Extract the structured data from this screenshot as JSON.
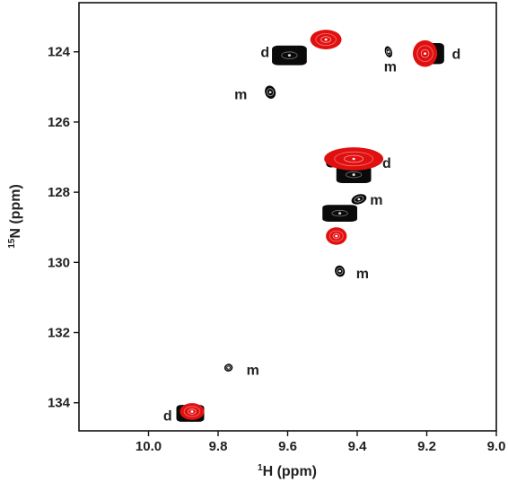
{
  "chart_data": {
    "type": "scatter",
    "title": "",
    "xlabel": {
      "sup": "1",
      "main": "H (ppm)"
    },
    "ylabel": {
      "sup": "15",
      "main": "N (ppm)"
    },
    "xlim": [
      10.2,
      9.0
    ],
    "ylim": [
      122.6,
      134.8
    ],
    "x_reversed": true,
    "y_reversed": true,
    "grid": false,
    "x_ticks": [
      "10.0",
      "9.8",
      "9.6",
      "9.4",
      "9.2",
      "9.0"
    ],
    "x_tick_values": [
      10.0,
      9.8,
      9.6,
      9.4,
      9.2,
      9.0
    ],
    "y_ticks": [
      "124",
      "126",
      "128",
      "130",
      "132",
      "134"
    ],
    "y_tick_values": [
      124,
      126,
      128,
      130,
      132,
      134
    ],
    "colors": {
      "black_spectrum": "#0a0a0a",
      "red_spectrum": "#e01010",
      "contour_light": "#9a9a9a"
    },
    "series": [
      {
        "color": "#0a0a0a",
        "points": [
          {
            "h": 9.595,
            "n": 124.1,
            "rx": 0.05,
            "ry": 0.28,
            "kind": "d"
          },
          {
            "h": 9.19,
            "n": 124.05,
            "rx": 0.04,
            "ry": 0.3,
            "kind": "d"
          },
          {
            "h": 9.41,
            "n": 127.5,
            "rx": 0.05,
            "ry": 0.24,
            "kind": "d"
          },
          {
            "h": 9.45,
            "n": 128.6,
            "rx": 0.05,
            "ry": 0.24,
            "kind": "d"
          },
          {
            "h": 9.88,
            "n": 134.3,
            "rx": 0.04,
            "ry": 0.24,
            "kind": "d"
          },
          {
            "h": 9.65,
            "n": 125.15,
            "rx": 0.035,
            "ry": 0.15,
            "kind": "m"
          },
          {
            "h": 9.31,
            "n": 124.0,
            "rx": 0.03,
            "ry": 0.1,
            "kind": "m"
          },
          {
            "h": 9.395,
            "n": 128.2,
            "rx": 0.025,
            "ry": 0.22,
            "kind": "m"
          },
          {
            "h": 9.45,
            "n": 130.25,
            "rx": 0.03,
            "ry": 0.14,
            "kind": "m"
          },
          {
            "h": 9.77,
            "n": 133.0,
            "rx": 0.02,
            "ry": 0.12,
            "kind": "m"
          },
          {
            "h": 9.47,
            "n": 127.15,
            "rx": 0.025,
            "ry": 0.2,
            "kind": "m"
          }
        ]
      },
      {
        "color": "#e01010",
        "points": [
          {
            "h": 9.49,
            "n": 123.65,
            "rx": 0.045,
            "ry": 0.28
          },
          {
            "h": 9.205,
            "n": 124.05,
            "rx": 0.035,
            "ry": 0.38
          },
          {
            "h": 9.41,
            "n": 127.05,
            "rx": 0.085,
            "ry": 0.33
          },
          {
            "h": 9.46,
            "n": 129.25,
            "rx": 0.03,
            "ry": 0.25
          },
          {
            "h": 9.875,
            "n": 134.25,
            "rx": 0.035,
            "ry": 0.24
          }
        ]
      }
    ],
    "annotations": [
      {
        "text": "d",
        "h": 9.665,
        "n": 124.0
      },
      {
        "text": "d",
        "h": 9.115,
        "n": 124.05
      },
      {
        "text": "m",
        "h": 9.305,
        "n": 124.4
      },
      {
        "text": "m",
        "h": 9.735,
        "n": 125.2
      },
      {
        "text": "d",
        "h": 9.315,
        "n": 127.15
      },
      {
        "text": "m",
        "h": 9.345,
        "n": 128.2
      },
      {
        "text": "m",
        "h": 9.385,
        "n": 130.3
      },
      {
        "text": "m",
        "h": 9.7,
        "n": 133.05
      },
      {
        "text": "d",
        "h": 9.945,
        "n": 134.35
      }
    ]
  }
}
